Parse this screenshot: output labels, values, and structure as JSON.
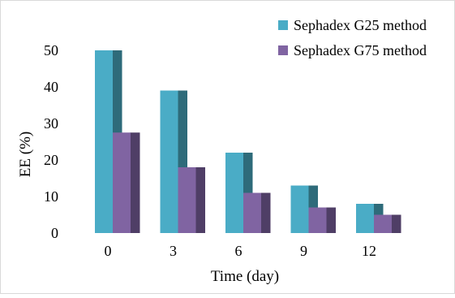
{
  "chart_data": {
    "type": "bar",
    "style": "3d-clustered-column",
    "categories": [
      "0",
      "3",
      "6",
      "9",
      "12"
    ],
    "series": [
      {
        "name": "Sephadex G25 method",
        "values": [
          50,
          39,
          22,
          13,
          8
        ],
        "color": "#4AACC6",
        "side_color": "#2E6B7A"
      },
      {
        "name": "Sephadex G75 method",
        "values": [
          27.5,
          18,
          11,
          7,
          5
        ],
        "color": "#8064A2",
        "side_color": "#4F3E66"
      }
    ],
    "xlabel": "Time (day)",
    "ylabel": "EE (%)",
    "ylim": [
      0,
      50
    ],
    "yticks": [
      0,
      10,
      20,
      30,
      40,
      50
    ],
    "grid": false,
    "legend_position": "top-right"
  }
}
